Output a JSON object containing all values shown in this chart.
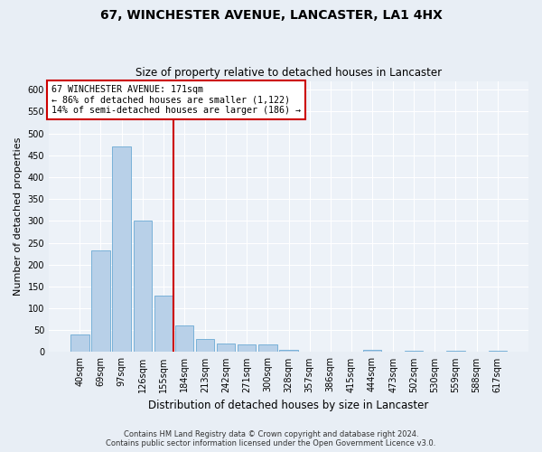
{
  "title1": "67, WINCHESTER AVENUE, LANCASTER, LA1 4HX",
  "title2": "Size of property relative to detached houses in Lancaster",
  "xlabel": "Distribution of detached houses by size in Lancaster",
  "ylabel": "Number of detached properties",
  "categories": [
    "40sqm",
    "69sqm",
    "97sqm",
    "126sqm",
    "155sqm",
    "184sqm",
    "213sqm",
    "242sqm",
    "271sqm",
    "300sqm",
    "328sqm",
    "357sqm",
    "386sqm",
    "415sqm",
    "444sqm",
    "473sqm",
    "502sqm",
    "530sqm",
    "559sqm",
    "588sqm",
    "617sqm"
  ],
  "values": [
    40,
    232,
    470,
    300,
    130,
    60,
    30,
    20,
    18,
    18,
    5,
    0,
    0,
    0,
    5,
    0,
    3,
    0,
    3,
    0,
    3
  ],
  "bar_color": "#b8d0e8",
  "bar_edge_color": "#6aaad4",
  "vline_color": "#cc0000",
  "vline_x": 4.5,
  "annotation_text": "67 WINCHESTER AVENUE: 171sqm\n← 86% of detached houses are smaller (1,122)\n14% of semi-detached houses are larger (186) →",
  "annotation_box_facecolor": "#ffffff",
  "annotation_box_edgecolor": "#cc0000",
  "ylim": [
    0,
    620
  ],
  "yticks": [
    0,
    50,
    100,
    150,
    200,
    250,
    300,
    350,
    400,
    450,
    500,
    550,
    600
  ],
  "footer1": "Contains HM Land Registry data © Crown copyright and database right 2024.",
  "footer2": "Contains public sector information licensed under the Open Government Licence v3.0.",
  "bg_color": "#e8eef5",
  "plot_bg_color": "#edf2f8",
  "grid_color": "#ffffff",
  "title1_fontsize": 10,
  "title2_fontsize": 8.5,
  "ylabel_fontsize": 8,
  "xlabel_fontsize": 8.5,
  "tick_fontsize": 7,
  "annotation_fontsize": 7.2,
  "footer_fontsize": 6
}
